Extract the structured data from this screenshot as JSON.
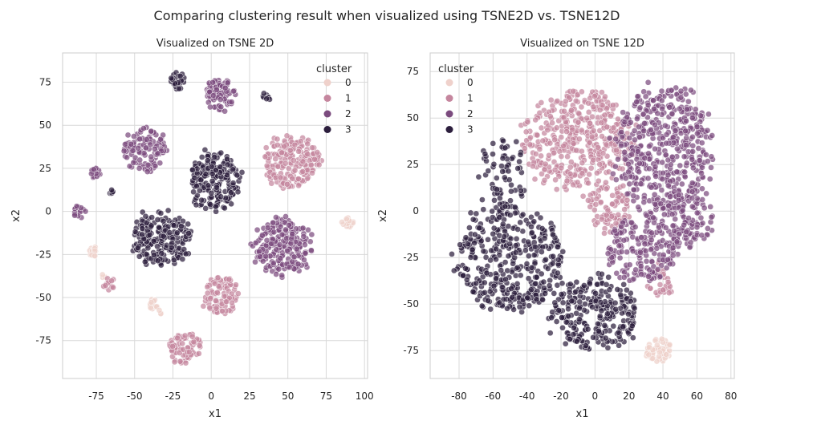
{
  "suptitle": "Comparing clustering result when visualized using TSNE2D vs. TSNE12D",
  "palette": [
    "#efd1cb",
    "#c5869e",
    "#7b4b7e",
    "#2c1e3d"
  ],
  "chart_data": [
    {
      "type": "scatter",
      "title": "Visualized on TSNE 2D",
      "xlabel": "x1",
      "ylabel": "x2",
      "xlim": [
        -97,
        102
      ],
      "ylim": [
        -97,
        92
      ],
      "xticks": [
        -75,
        -50,
        -25,
        0,
        25,
        50,
        75,
        100
      ],
      "yticks": [
        -75,
        -50,
        -25,
        0,
        25,
        50,
        75
      ],
      "grid": true,
      "legend": {
        "title": "cluster",
        "entries": [
          "0",
          "1",
          "2",
          "3"
        ],
        "placement": "top-right"
      },
      "clusters": [
        {
          "label": "0",
          "series": 0,
          "cx": -77,
          "cy": -23,
          "rx": 2.5,
          "ry": 3,
          "n": 14
        },
        {
          "label": "0",
          "series": 0,
          "cx": -70,
          "cy": -37,
          "rx": 1.5,
          "ry": 1.5,
          "n": 3
        },
        {
          "label": "0",
          "series": 0,
          "cx": -38,
          "cy": -54,
          "rx": 3,
          "ry": 3,
          "n": 14
        },
        {
          "label": "0",
          "series": 0,
          "cx": -33,
          "cy": -58,
          "rx": 1.5,
          "ry": 1.5,
          "n": 3
        },
        {
          "label": "0",
          "series": 0,
          "cx": 89,
          "cy": -7,
          "rx": 3.5,
          "ry": 4,
          "n": 20
        },
        {
          "label": "1",
          "series": 1,
          "cx": 52,
          "cy": 29,
          "rx": 18,
          "ry": 15,
          "n": 200
        },
        {
          "label": "1",
          "series": 1,
          "cx": 6,
          "cy": -49,
          "rx": 12,
          "ry": 11,
          "n": 95
        },
        {
          "label": "1",
          "series": 1,
          "cx": -17,
          "cy": -79,
          "rx": 11,
          "ry": 9,
          "n": 80
        },
        {
          "label": "1",
          "series": 1,
          "cx": -67,
          "cy": -42,
          "rx": 4,
          "ry": 4,
          "n": 14
        },
        {
          "label": "2",
          "series": 2,
          "cx": -44,
          "cy": 36,
          "rx": 14,
          "ry": 12,
          "n": 110
        },
        {
          "label": "2",
          "series": 2,
          "cx": 47,
          "cy": -21,
          "rx": 19,
          "ry": 16,
          "n": 230
        },
        {
          "label": "2",
          "series": 2,
          "cx": 6,
          "cy": 68,
          "rx": 9,
          "ry": 10,
          "n": 85
        },
        {
          "label": "2",
          "series": 2,
          "cx": -76,
          "cy": 22,
          "rx": 3.5,
          "ry": 3.5,
          "n": 14
        },
        {
          "label": "2",
          "series": 2,
          "cx": -86,
          "cy": 0,
          "rx": 4,
          "ry": 4,
          "n": 16
        },
        {
          "label": "3",
          "series": 3,
          "cx": -33,
          "cy": -16,
          "rx": 19,
          "ry": 16,
          "n": 210
        },
        {
          "label": "3",
          "series": 3,
          "cx": 3,
          "cy": 17,
          "rx": 16,
          "ry": 18,
          "n": 190
        },
        {
          "label": "3",
          "series": 3,
          "cx": -22,
          "cy": 76,
          "rx": 5,
          "ry": 6,
          "n": 28
        },
        {
          "label": "3",
          "series": 3,
          "cx": 36,
          "cy": 67,
          "rx": 2.5,
          "ry": 2.5,
          "n": 8
        },
        {
          "label": "3",
          "series": 3,
          "cx": -65,
          "cy": 11,
          "rx": 1.5,
          "ry": 1.5,
          "n": 5
        }
      ]
    },
    {
      "type": "scatter",
      "title": "Visualized on TSNE 12D",
      "xlabel": "x1",
      "ylabel": "x2",
      "xlim": [
        -97,
        82
      ],
      "ylim": [
        -90,
        85
      ],
      "xticks": [
        -80,
        -60,
        -40,
        -20,
        0,
        20,
        40,
        60,
        80
      ],
      "yticks": [
        -75,
        -50,
        -25,
        0,
        25,
        50,
        75
      ],
      "grid": true,
      "legend": {
        "title": "cluster",
        "entries": [
          "0",
          "1",
          "2",
          "3"
        ],
        "placement": "top-left"
      },
      "clusters": [
        {
          "label": "0",
          "series": 0,
          "cx": 37,
          "cy": -75,
          "rx": 8,
          "ry": 6,
          "n": 60
        },
        {
          "label": "1",
          "series": 1,
          "cx": -10,
          "cy": 38,
          "rx": 32,
          "ry": 26,
          "n": 420
        },
        {
          "label": "1",
          "series": 1,
          "cx": 8,
          "cy": 2,
          "rx": 12,
          "ry": 14,
          "n": 80
        },
        {
          "label": "1",
          "series": 1,
          "cx": 38,
          "cy": -38,
          "rx": 8,
          "ry": 9,
          "n": 30
        },
        {
          "label": "2",
          "series": 2,
          "cx": 40,
          "cy": 33,
          "rx": 27,
          "ry": 35,
          "n": 480
        },
        {
          "label": "2",
          "series": 2,
          "cx": 28,
          "cy": -20,
          "rx": 20,
          "ry": 18,
          "n": 180
        },
        {
          "label": "2",
          "series": 2,
          "cx": 55,
          "cy": -5,
          "rx": 15,
          "ry": 15,
          "n": 100
        },
        {
          "label": "3",
          "series": 3,
          "cx": -50,
          "cy": -25,
          "rx": 30,
          "ry": 28,
          "n": 380
        },
        {
          "label": "3",
          "series": 3,
          "cx": 0,
          "cy": -55,
          "rx": 25,
          "ry": 20,
          "n": 260
        },
        {
          "label": "3",
          "series": 3,
          "cx": -55,
          "cy": 15,
          "rx": 14,
          "ry": 25,
          "n": 80
        }
      ]
    }
  ]
}
